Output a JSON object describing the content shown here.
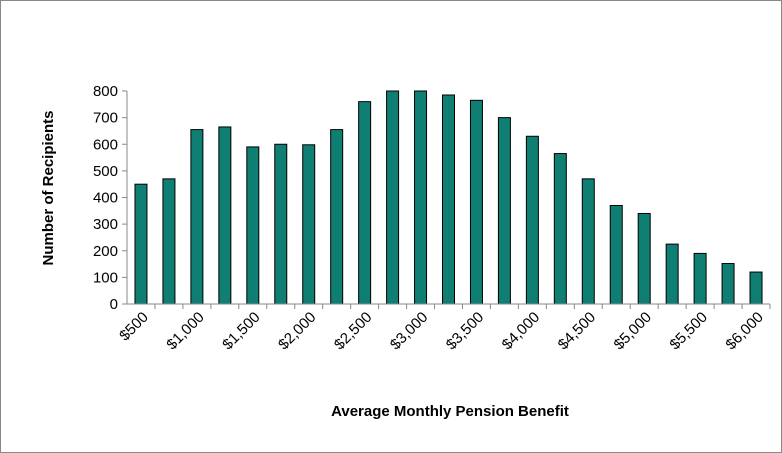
{
  "chart_data": {
    "type": "bar",
    "x_label": "Average Monthly Pension Benefit",
    "y_label": "Number of Recipients",
    "categories": [
      "$500",
      null,
      "$1,000",
      null,
      "$1,500",
      null,
      "$2,000",
      null,
      "$2,500",
      null,
      "$3,000",
      null,
      "$3,500",
      null,
      "$4,000",
      null,
      "$4,500",
      null,
      "$5,000",
      null,
      "$5,500",
      null,
      "$6,000"
    ],
    "values": [
      450,
      470,
      655,
      665,
      590,
      600,
      598,
      655,
      760,
      800,
      800,
      785,
      765,
      700,
      630,
      565,
      470,
      370,
      340,
      225,
      190,
      152,
      120
    ],
    "color": "#0f7f73",
    "ylim": [
      0,
      800
    ],
    "yticks": [
      0,
      100,
      200,
      300,
      400,
      500,
      600,
      700,
      800
    ],
    "grid": false
  }
}
